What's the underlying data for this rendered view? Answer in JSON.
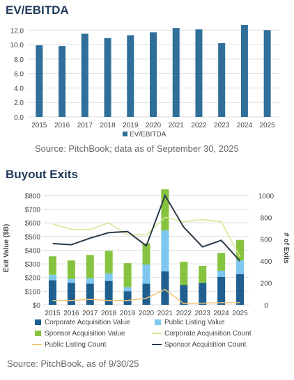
{
  "charts": {
    "ev": {
      "title": "EV/EBITDA",
      "source": "Source: PitchBook; data as of September 30, 2025",
      "legend_label": "EV/EBITDA",
      "colors": {
        "bar": "#2f6f9a",
        "grid": "#dddddd",
        "text": "#444444"
      }
    },
    "buyout": {
      "title": "Buyout Exits",
      "source": "Source: PitchBook, as of 9/30/25",
      "colors": {
        "corporate_value": "#1f5f8f",
        "public_listing_value": "#7ec8ef",
        "sponsor_value": "#86c440",
        "corporate_count": "#d9e58f",
        "public_listing_count": "#f2c47a",
        "sponsor_count": "#2b3b4a",
        "grid": "#dddddd",
        "text": "#444444"
      }
    }
  },
  "chart_data": [
    {
      "type": "bar",
      "title": "EV/EBITDA",
      "categories": [
        "2015",
        "2016",
        "2017",
        "2018",
        "2019",
        "2020",
        "2021",
        "2022",
        "2023",
        "2024",
        "2025"
      ],
      "series": [
        {
          "name": "EV/EBITDA",
          "values": [
            9.9,
            9.8,
            11.5,
            10.9,
            11.3,
            11.7,
            12.3,
            12.1,
            10.2,
            12.7,
            12.0
          ]
        }
      ],
      "ylim": [
        0,
        12
      ],
      "yticks": [
        "0.0",
        "2.0",
        "4.0",
        "6.0",
        "8.0",
        "10.0",
        "12.0"
      ],
      "ytick_values": [
        0,
        2,
        4,
        6,
        8,
        10,
        12
      ],
      "grid": true,
      "legend": "bottom"
    },
    {
      "type": "bar",
      "title": "Buyout Exits",
      "ylabel": "Exit Value ($B)",
      "y2label": "# of Exits",
      "categories": [
        "2015",
        "2016",
        "2017",
        "2018",
        "2019",
        "2020",
        "2021",
        "2022",
        "2023",
        "2024",
        "2025"
      ],
      "series": [
        {
          "name": "Corporate Acquisition Value",
          "kind": "bar",
          "axis": "left",
          "values": [
            180,
            160,
            155,
            175,
            100,
            155,
            245,
            145,
            160,
            205,
            225
          ]
        },
        {
          "name": "Public Listing Value",
          "kind": "bar",
          "axis": "left",
          "values": [
            40,
            30,
            40,
            55,
            30,
            140,
            300,
            0,
            0,
            45,
            100
          ]
        },
        {
          "name": "Sponsor Acquisition Value",
          "kind": "bar",
          "axis": "left",
          "values": [
            135,
            135,
            170,
            165,
            175,
            155,
            300,
            170,
            125,
            130,
            150
          ]
        },
        {
          "name": "Corporate Acquisition Count",
          "kind": "line",
          "axis": "right",
          "values": [
            740,
            690,
            690,
            750,
            640,
            640,
            800,
            760,
            780,
            760,
            440
          ]
        },
        {
          "name": "Public Listing Count",
          "kind": "line",
          "axis": "right",
          "values": [
            40,
            40,
            50,
            40,
            40,
            60,
            140,
            10,
            15,
            20,
            20
          ]
        },
        {
          "name": "Sponsor Acquisition Count",
          "kind": "line",
          "axis": "right",
          "values": [
            560,
            550,
            610,
            660,
            670,
            540,
            1000,
            710,
            530,
            590,
            400
          ]
        }
      ],
      "ylim": [
        0,
        800
      ],
      "yticks": [
        "$0",
        "$100",
        "$200",
        "$300",
        "$400",
        "$500",
        "$600",
        "$700",
        "$800"
      ],
      "ytick_values": [
        0,
        100,
        200,
        300,
        400,
        500,
        600,
        700,
        800
      ],
      "y2lim": [
        0,
        1000
      ],
      "y2ticks": [
        "0",
        "200",
        "400",
        "600",
        "800",
        "1000"
      ],
      "y2tick_values": [
        0,
        200,
        400,
        600,
        800,
        1000
      ],
      "grid": true,
      "legend": "bottom"
    }
  ]
}
